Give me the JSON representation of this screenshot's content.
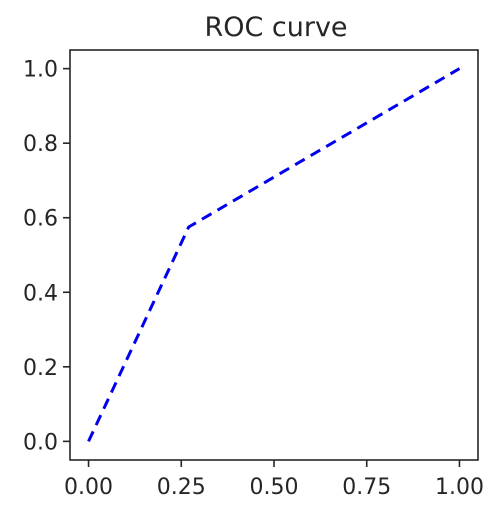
{
  "chart_data": {
    "type": "line",
    "title": "ROC curve",
    "xlabel": "",
    "ylabel": "",
    "xlim": [
      -0.05,
      1.05
    ],
    "ylim": [
      -0.05,
      1.05
    ],
    "x_ticks": [
      0.0,
      0.25,
      0.5,
      0.75,
      1.0
    ],
    "x_tick_labels": [
      "0.00",
      "0.25",
      "0.50",
      "0.75",
      "1.00"
    ],
    "y_ticks": [
      0.0,
      0.2,
      0.4,
      0.6,
      0.8,
      1.0
    ],
    "y_tick_labels": [
      "0.0",
      "0.2",
      "0.4",
      "0.6",
      "0.8",
      "1.0"
    ],
    "grid": false,
    "series": [
      {
        "x": [
          0.0,
          0.27,
          1.0
        ],
        "y": [
          0.0,
          0.575,
          1.0
        ],
        "color": "#0000ee",
        "line_style": "dashed"
      }
    ]
  }
}
